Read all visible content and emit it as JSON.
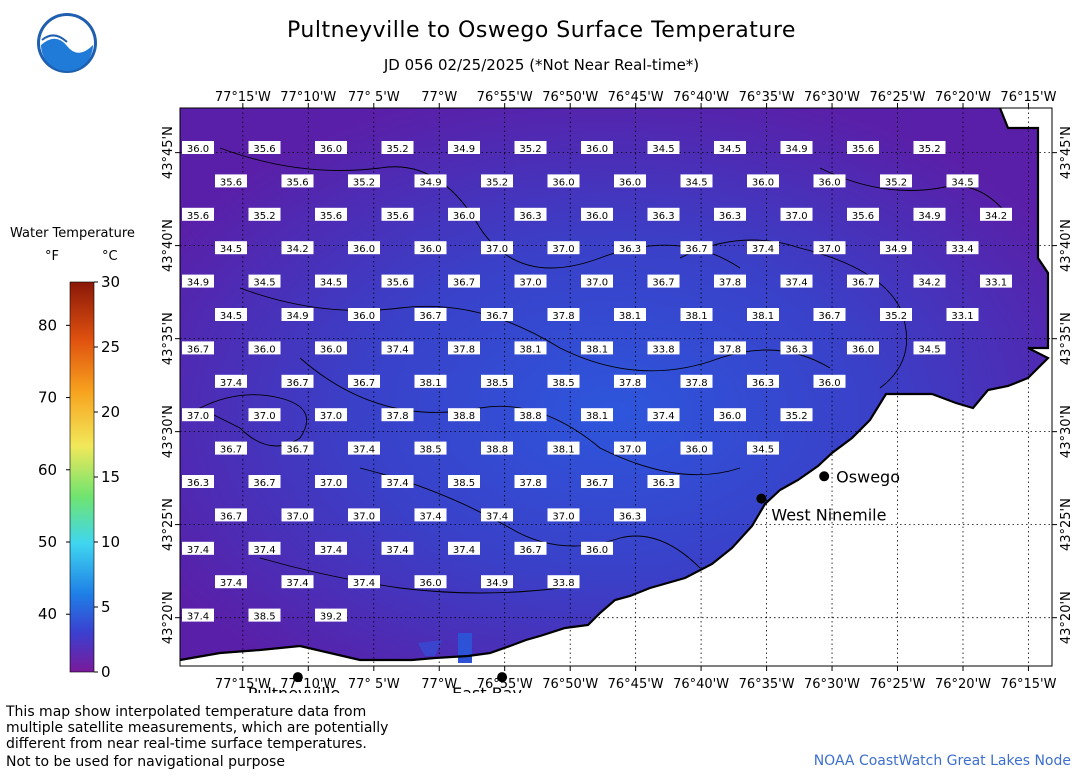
{
  "title": "Pultneyville to Oswego Surface Temperature",
  "subtitle": "JD 056 02/25/2025 (*Not Near Real-time*)",
  "logo_text": "NOAA",
  "legend": {
    "title": "Water Temperature",
    "unit_f": "°F",
    "unit_c": "°C",
    "f_ticks": [
      "40",
      "50",
      "60",
      "70",
      "80"
    ],
    "c_ticks": [
      "0",
      "5",
      "10",
      "15",
      "20",
      "25",
      "30"
    ]
  },
  "lon_labels": [
    "77°15'W",
    "77°10'W",
    "77° 5'W",
    "77°W",
    "76°55'W",
    "76°50'W",
    "76°45'W",
    "76°40'W",
    "76°35'W",
    "76°30'W",
    "76°25'W",
    "76°20'W",
    "76°15'W"
  ],
  "lat_labels": [
    "43°45'N",
    "43°40'N",
    "43°35'N",
    "43°30'N",
    "43°25'N",
    "43°20'N"
  ],
  "places": [
    {
      "name": "Oswego",
      "lon": -76.51,
      "lat": 43.46
    },
    {
      "name": "West Ninemile",
      "lon": -76.59,
      "lat": 43.44
    },
    {
      "name": "Pultneyville",
      "lon": -77.18,
      "lat": 43.28
    },
    {
      "name": "East Bay",
      "lon": -76.92,
      "lat": 43.28
    }
  ],
  "temps": [
    [
      "36.0",
      "35.6",
      "36.0",
      "35.2",
      "34.9",
      "35.2",
      "36.0",
      "34.5",
      "34.5",
      "34.9",
      "35.6",
      "35.2"
    ],
    [
      "35.6",
      "35.6",
      "35.2",
      "34.9",
      "35.2",
      "36.0",
      "36.0",
      "34.5",
      "36.0",
      "36.0",
      "35.2",
      "34.5"
    ],
    [
      "35.6",
      "35.2",
      "35.6",
      "35.6",
      "36.0",
      "36.3",
      "36.0",
      "36.3",
      "36.3",
      "37.0",
      "35.6",
      "34.9",
      "34.2"
    ],
    [
      "34.5",
      "34.2",
      "36.0",
      "36.0",
      "37.0",
      "37.0",
      "36.3",
      "36.7",
      "37.4",
      "37.0",
      "34.9",
      "33.4"
    ],
    [
      "34.9",
      "34.5",
      "34.5",
      "35.6",
      "36.7",
      "37.0",
      "37.0",
      "36.7",
      "37.8",
      "37.4",
      "36.7",
      "34.2",
      "33.1"
    ],
    [
      "34.5",
      "34.9",
      "36.0",
      "36.7",
      "36.7",
      "37.8",
      "38.1",
      "38.1",
      "38.1",
      "36.7",
      "35.2",
      "33.1"
    ],
    [
      "36.7",
      "36.0",
      "36.0",
      "37.4",
      "37.8",
      "38.1",
      "38.1",
      "33.8",
      "37.8",
      "36.3",
      "36.0",
      "34.5"
    ],
    [
      "37.4",
      "36.7",
      "36.7",
      "38.1",
      "38.5",
      "38.5",
      "37.8",
      "37.8",
      "36.3",
      "36.0"
    ],
    [
      "37.0",
      "37.0",
      "37.0",
      "37.8",
      "38.8",
      "38.8",
      "38.1",
      "37.4",
      "36.0",
      "35.2"
    ],
    [
      "36.7",
      "36.7",
      "37.4",
      "38.5",
      "38.8",
      "38.1",
      "37.0",
      "36.0",
      "34.5"
    ],
    [
      "36.3",
      "36.7",
      "37.0",
      "37.4",
      "38.5",
      "37.8",
      "36.7",
      "36.3"
    ],
    [
      "36.7",
      "37.0",
      "37.0",
      "37.4",
      "37.4",
      "37.0",
      "36.3"
    ],
    [
      "37.4",
      "37.4",
      "37.4",
      "37.4",
      "37.4",
      "36.7",
      "36.0"
    ],
    [
      "37.4",
      "37.4",
      "37.4",
      "36.0",
      "34.9",
      "33.8"
    ],
    [
      "37.4",
      "38.5",
      "39.2"
    ]
  ],
  "notes": [
    "This map show interpolated temperature data from",
    "multiple satellite measurements, which are potentially",
    "different from near real-time surface temperatures."
  ],
  "nav_warning": "Not to be used for navigational purpose",
  "credit": "NOAA CoastWatch Great Lakes Node",
  "colors": {
    "water_low": "#5a1fa8",
    "water_high": "#2a55d8",
    "grid": "#000000",
    "credit": "#3d6fd0"
  }
}
